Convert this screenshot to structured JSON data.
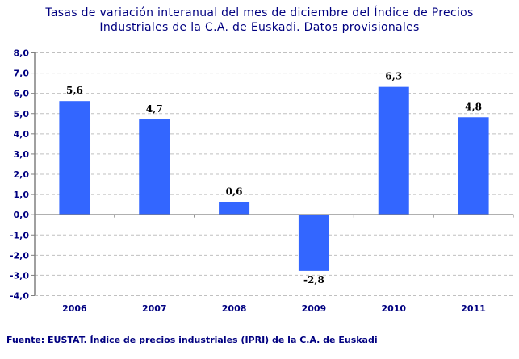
{
  "title_lines": [
    "Tasas de variación interanual del mes de diciembre del Índice de Precios",
    "Industriales de la C.A. de Euskadi. Datos provisionales"
  ],
  "footer": "Fuente: EUSTAT. Índice de precios industriales (IPRI) de la C.A. de Euskadi",
  "chart_data": {
    "type": "bar",
    "title": "Tasas de variación interanual del mes de diciembre del Índice de Precios Industriales de la C.A. de Euskadi. Datos provisionales",
    "categories": [
      "2006",
      "2007",
      "2008",
      "2009",
      "2010",
      "2011"
    ],
    "values": [
      5.6,
      4.7,
      0.6,
      -2.8,
      6.3,
      4.8
    ],
    "data_labels": [
      "5,6",
      "4,7",
      "0,6",
      "-2,8",
      "6,3",
      "4,8"
    ],
    "ylim": [
      -4,
      8
    ],
    "yticks": [
      "8,0",
      "7,0",
      "6,0",
      "5,0",
      "4,0",
      "3,0",
      "2,0",
      "1,0",
      "0,0",
      "-1,0",
      "-2,0",
      "-3,0",
      "-4,0"
    ],
    "grid": true,
    "legend": "none",
    "colors": {
      "bar": "#3366FF",
      "axis_text": "#000080",
      "grid": "#C0C0C0"
    }
  }
}
